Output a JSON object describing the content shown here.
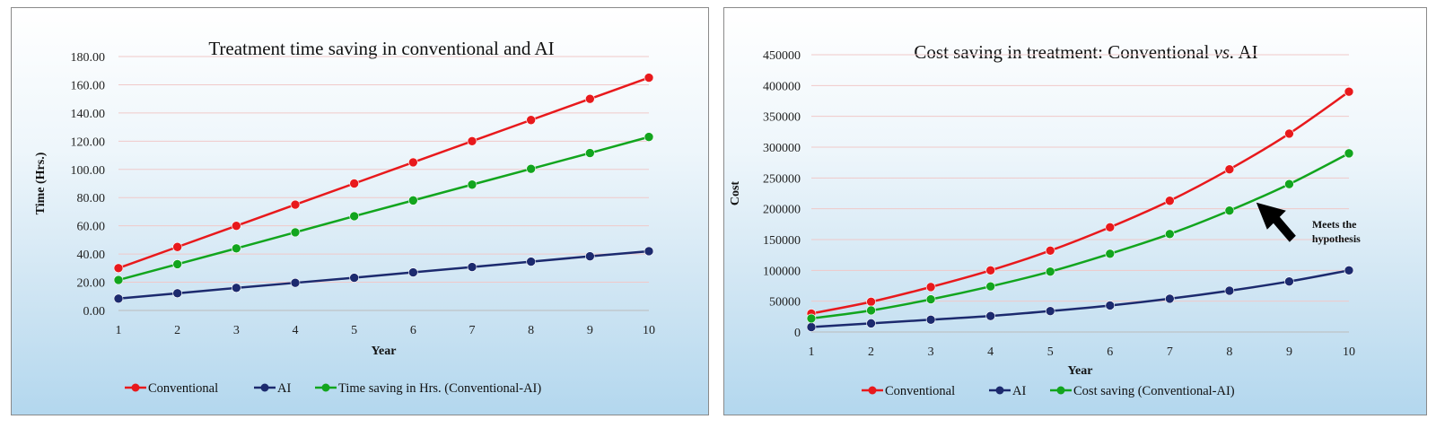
{
  "chart_data": [
    {
      "type": "line",
      "title": "Treatment time saving in conventional and AI",
      "xlabel": "Year",
      "ylabel": "Time (Hrs.)",
      "x": [
        1,
        2,
        3,
        4,
        5,
        6,
        7,
        8,
        9,
        10
      ],
      "ylim": [
        0,
        180
      ],
      "yticks": [
        "0.00",
        "20.00",
        "40.00",
        "60.00",
        "80.00",
        "100.00",
        "120.00",
        "140.00",
        "160.00",
        "180.00"
      ],
      "grid": true,
      "legend_position": "bottom",
      "series": [
        {
          "name": "Conventional",
          "color": "#e8191c",
          "values": [
            30,
            45,
            60,
            75,
            90,
            105,
            120,
            135,
            150,
            165
          ]
        },
        {
          "name": "AI",
          "color": "#1c2a6e",
          "values": [
            8.4,
            12.2,
            16,
            19.6,
            23.2,
            27,
            30.8,
            34.6,
            38.4,
            42
          ]
        },
        {
          "name": "Time saving in Hrs. (Conventional-AI)",
          "color": "#12a51e",
          "values": [
            21.6,
            32.8,
            44,
            55.4,
            66.8,
            78,
            89.2,
            100.4,
            111.6,
            123
          ]
        }
      ]
    },
    {
      "type": "line",
      "title_parts": [
        "Cost saving in treatment: Conventional ",
        "vs.",
        " AI"
      ],
      "xlabel": "Year",
      "ylabel": "Cost",
      "x": [
        1,
        2,
        3,
        4,
        5,
        6,
        7,
        8,
        9,
        10
      ],
      "ylim": [
        0,
        450000
      ],
      "yticks": [
        "0",
        "50000",
        "100000",
        "150000",
        "200000",
        "250000",
        "300000",
        "350000",
        "400000",
        "450000"
      ],
      "grid": true,
      "legend_position": "bottom",
      "annotation": {
        "lines": [
          "Meets the",
          "hypothesis"
        ],
        "arrow_target_x": 8.45,
        "arrow_target_y": 210000
      },
      "series": [
        {
          "name": "Conventional",
          "color": "#e8191c",
          "values": [
            30000,
            49000,
            73000,
            100000,
            132000,
            170000,
            213000,
            264000,
            322000,
            390000
          ]
        },
        {
          "name": "AI",
          "color": "#1c2a6e",
          "values": [
            8000,
            14000,
            20000,
            26000,
            34000,
            43000,
            54000,
            67000,
            82000,
            100000
          ]
        },
        {
          "name": "Cost saving (Conventional-AI)",
          "color": "#12a51e",
          "values": [
            22000,
            35000,
            53000,
            74000,
            98000,
            127000,
            159000,
            197000,
            240000,
            290000
          ]
        }
      ]
    }
  ]
}
